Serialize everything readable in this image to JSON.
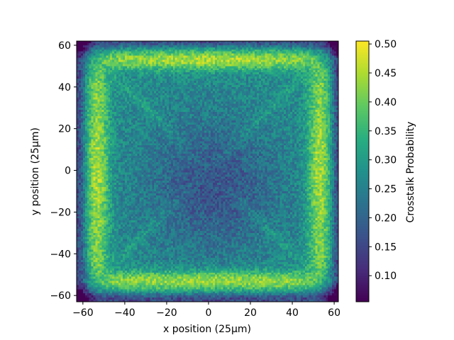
{
  "chart_data": {
    "type": "heatmap",
    "title": "",
    "xlabel": "x position (25µm)",
    "ylabel": "y position (25µm)",
    "xlim": [
      -63,
      62
    ],
    "ylim": [
      -63,
      62
    ],
    "xticks": [
      -60,
      -40,
      -20,
      0,
      20,
      40,
      60
    ],
    "yticks": [
      -60,
      -40,
      -20,
      0,
      20,
      40,
      60
    ],
    "colorbar": {
      "label": "Crosstalk Probability",
      "range": [
        0.055,
        0.505
      ],
      "ticks": [
        0.1,
        0.15,
        0.2,
        0.25,
        0.3,
        0.35,
        0.4,
        0.45,
        0.5
      ],
      "colormap": "viridis"
    },
    "grid": false,
    "grid_resolution": 125,
    "pattern": {
      "baseline": 0.27,
      "center_minimum": 0.17,
      "edge_maximum": 0.45,
      "corner_minimum": 0.08,
      "band_x": 53,
      "band_y": 53,
      "noise": 0.05
    }
  }
}
